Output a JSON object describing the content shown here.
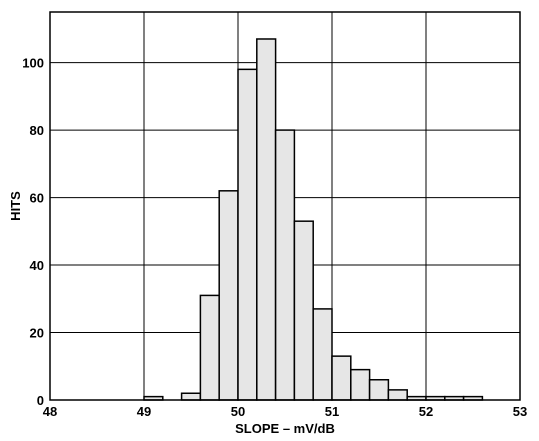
{
  "chart_data": {
    "type": "bar",
    "title": "",
    "xlabel": "SLOPE – mV/dB",
    "ylabel": "HITS",
    "xlim": [
      48,
      53
    ],
    "ylim": [
      0,
      115
    ],
    "bin_width": 0.2,
    "grid": true,
    "legend": "none",
    "x_ticks": [
      48,
      49,
      50,
      51,
      52,
      53
    ],
    "y_ticks": [
      0,
      20,
      40,
      60,
      80,
      100
    ],
    "bins": [
      {
        "x": 49.1,
        "value": 1
      },
      {
        "x": 49.5,
        "value": 2
      },
      {
        "x": 49.7,
        "value": 31
      },
      {
        "x": 49.9,
        "value": 62
      },
      {
        "x": 50.1,
        "value": 98
      },
      {
        "x": 50.3,
        "value": 107
      },
      {
        "x": 50.5,
        "value": 80
      },
      {
        "x": 50.7,
        "value": 53
      },
      {
        "x": 50.9,
        "value": 27
      },
      {
        "x": 51.1,
        "value": 13
      },
      {
        "x": 51.3,
        "value": 9
      },
      {
        "x": 51.5,
        "value": 6
      },
      {
        "x": 51.7,
        "value": 3
      },
      {
        "x": 51.9,
        "value": 1
      },
      {
        "x": 52.1,
        "value": 1
      },
      {
        "x": 52.3,
        "value": 1
      },
      {
        "x": 52.5,
        "value": 1
      }
    ],
    "colors": {
      "bar_fill": "#e6e6e6",
      "bar_stroke": "#000000",
      "grid": "#000000"
    }
  }
}
